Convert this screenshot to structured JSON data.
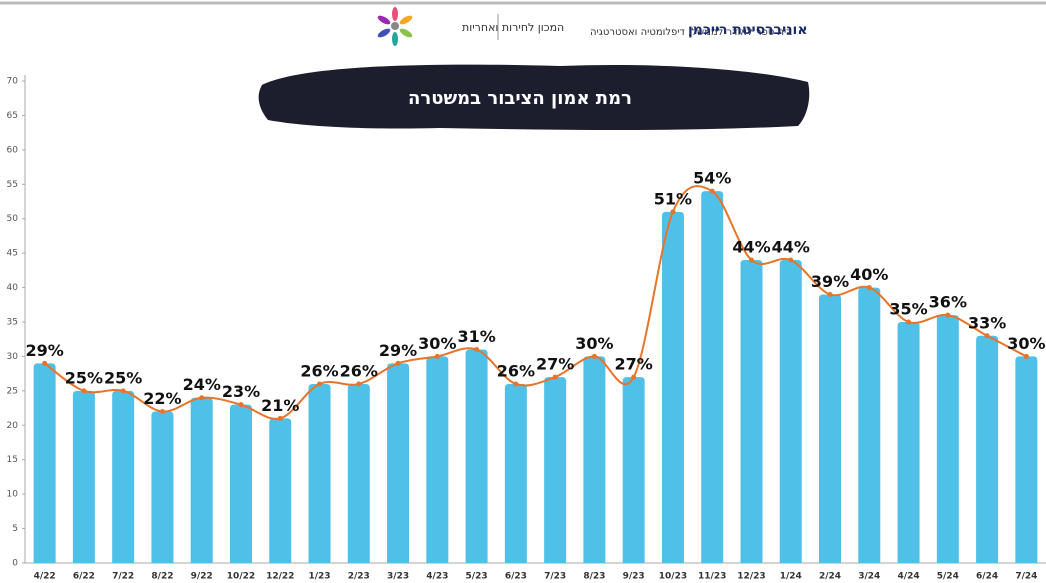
{
  "header": {
    "university": "אוניברסיטת רייכמן",
    "school": "בית ספר לאודר לממשל, דיפלומטיה ואסטרטגיה",
    "institute": "המכון לחירות ואחריות"
  },
  "chart_data": {
    "type": "bar",
    "title": "רמת אמון הציבור במשטרה",
    "categories": [
      "4/22",
      "6/22",
      "7/22",
      "8/22",
      "9/22",
      "10/22",
      "12/22",
      "1/23",
      "2/23",
      "3/23",
      "4/23",
      "5/23",
      "6/23",
      "7/23",
      "8/23",
      "9/23",
      "10/23",
      "11/23",
      "12/23",
      "1/24",
      "2/24",
      "3/24",
      "4/24",
      "5/24",
      "6/24",
      "7/24"
    ],
    "values": [
      29,
      25,
      25,
      22,
      24,
      23,
      21,
      26,
      26,
      29,
      30,
      31,
      26,
      27,
      30,
      27,
      51,
      54,
      44,
      44,
      39,
      40,
      35,
      36,
      33,
      30
    ],
    "value_labels": [
      "29%",
      "25%",
      "25%",
      "22%",
      "24%",
      "23%",
      "21%",
      "26%",
      "26%",
      "29%",
      "30%",
      "31%",
      "26%",
      "27%",
      "30%",
      "27%",
      "51%",
      "54%",
      "44%",
      "44%",
      "39%",
      "40%",
      "35%",
      "36%",
      "33%",
      "30%"
    ],
    "color": "#4fc0e8",
    "line_color": "#e8742a",
    "ylim": [
      0,
      70
    ],
    "yticks": [
      0,
      5,
      10,
      15,
      20,
      25,
      30,
      35,
      40,
      45,
      50,
      55,
      60,
      65,
      70
    ]
  }
}
